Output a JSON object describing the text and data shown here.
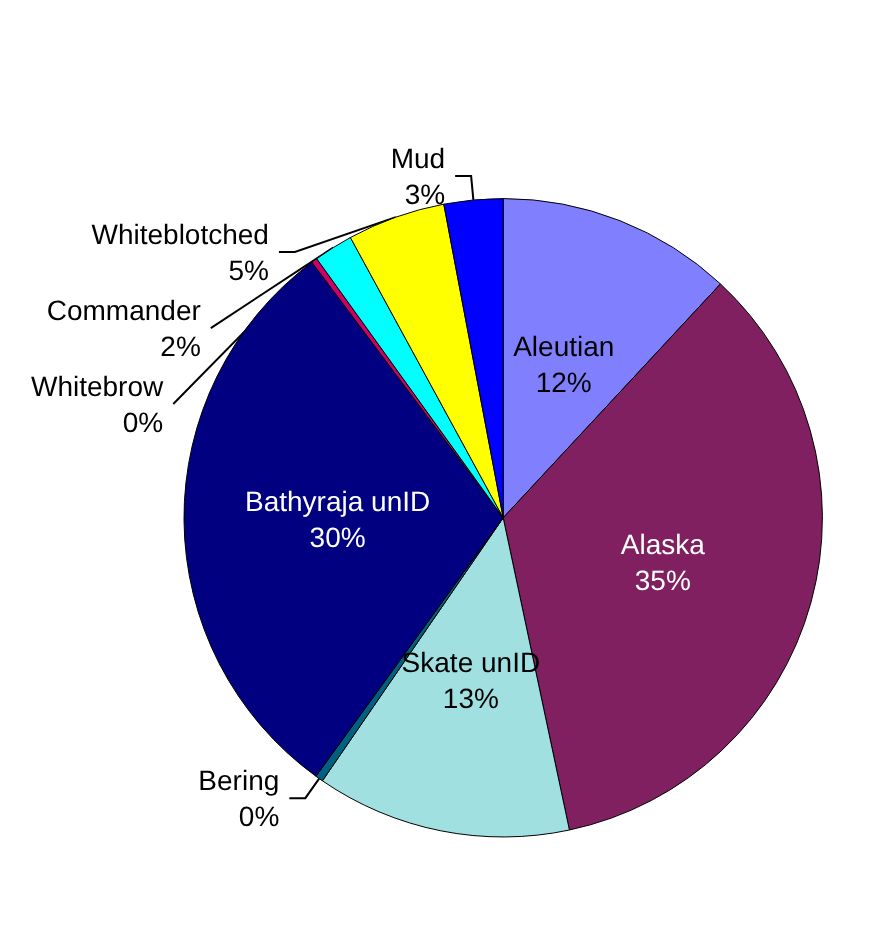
{
  "chart_data": {
    "type": "pie",
    "categories": [
      "Aleutian",
      "Alaska",
      "Skate unID",
      "Bering",
      "Bathyraja unID",
      "Whitebrow",
      "Commander",
      "Whiteblotched",
      "Mud"
    ],
    "values": [
      12,
      35,
      13,
      0.4,
      30,
      0.3,
      2,
      5,
      3
    ],
    "value_labels": [
      "12%",
      "35%",
      "13%",
      "0%",
      "30%",
      "0%",
      "2%",
      "5%",
      "3%"
    ],
    "colors": [
      "#8080ff",
      "#802060",
      "#a0e0e0",
      "#006080",
      "#000080",
      "#cc0066",
      "#00ffff",
      "#ffff00",
      "#0000ff"
    ],
    "legend": false
  }
}
